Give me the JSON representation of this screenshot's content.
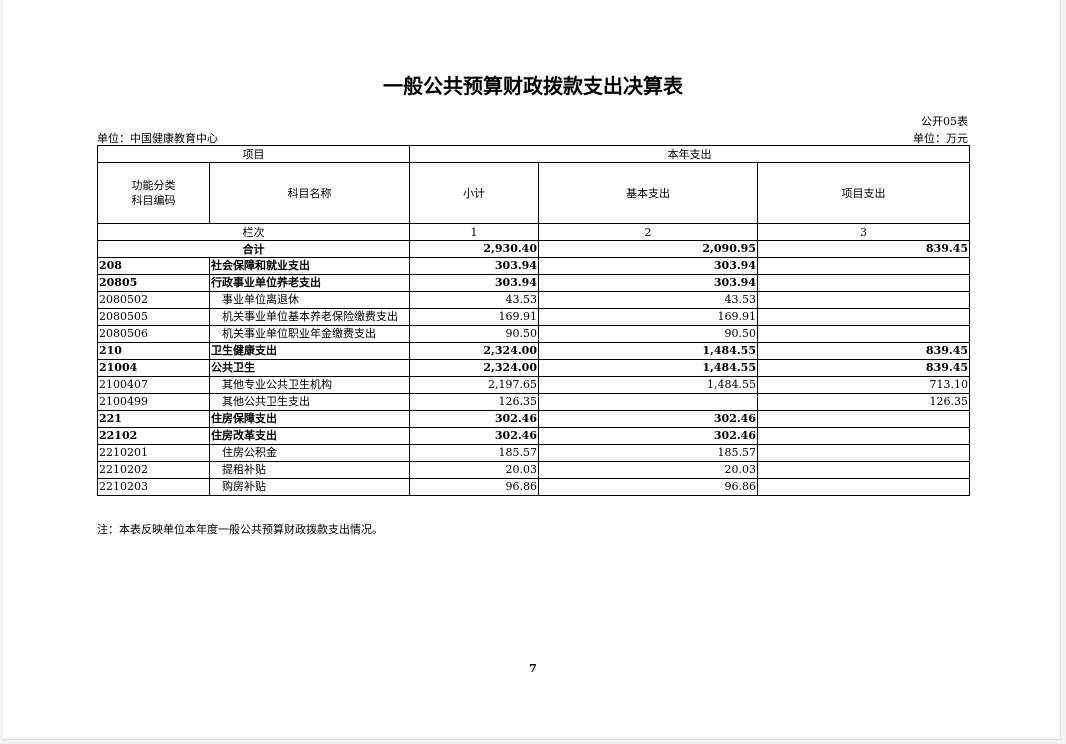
{
  "title": "一般公共预算财政拨款支出决算表",
  "table_no": "公开05表",
  "unit_org": "单位：中国健康教育中心",
  "unit_money": "单位：万元",
  "header": {
    "project": "项目",
    "current_year": "本年支出",
    "code": "功能分类\n科目编码",
    "name": "科目名称",
    "subtotal": "小计",
    "basic": "基本支出",
    "project_exp": "项目支出",
    "col_label": "栏次",
    "col1": "1",
    "col2": "2",
    "col3": "3"
  },
  "total": {
    "label": "合计",
    "subtotal": "2,930.40",
    "basic": "2,090.95",
    "project": "839.45"
  },
  "rows": [
    {
      "code": "208",
      "name": "社会保障和就业支出",
      "subtotal": "303.94",
      "basic": "303.94",
      "project": "",
      "bold": true
    },
    {
      "code": "20805",
      "name": "行政事业单位养老支出",
      "subtotal": "303.94",
      "basic": "303.94",
      "project": "",
      "bold": true
    },
    {
      "code": "2080502",
      "name": "事业单位离退休",
      "subtotal": "43.53",
      "basic": "43.53",
      "project": ""
    },
    {
      "code": "2080505",
      "name": "机关事业单位基本养老保险缴费支出",
      "subtotal": "169.91",
      "basic": "169.91",
      "project": ""
    },
    {
      "code": "2080506",
      "name": "机关事业单位职业年金缴费支出",
      "subtotal": "90.50",
      "basic": "90.50",
      "project": ""
    },
    {
      "code": "210",
      "name": "卫生健康支出",
      "subtotal": "2,324.00",
      "basic": "1,484.55",
      "project": "839.45",
      "bold": true
    },
    {
      "code": "21004",
      "name": "公共卫生",
      "subtotal": "2,324.00",
      "basic": "1,484.55",
      "project": "839.45",
      "bold": true
    },
    {
      "code": "2100407",
      "name": "其他专业公共卫生机构",
      "subtotal": "2,197.65",
      "basic": "1,484.55",
      "project": "713.10"
    },
    {
      "code": "2100499",
      "name": "其他公共卫生支出",
      "subtotal": "126.35",
      "basic": "",
      "project": "126.35"
    },
    {
      "code": "221",
      "name": "住房保障支出",
      "subtotal": "302.46",
      "basic": "302.46",
      "project": "",
      "bold": true
    },
    {
      "code": "22102",
      "name": "住房改革支出",
      "subtotal": "302.46",
      "basic": "302.46",
      "project": "",
      "bold": true
    },
    {
      "code": "2210201",
      "name": "住房公积金",
      "subtotal": "185.57",
      "basic": "185.57",
      "project": ""
    },
    {
      "code": "2210202",
      "name": "提租补贴",
      "subtotal": "20.03",
      "basic": "20.03",
      "project": ""
    },
    {
      "code": "2210203",
      "name": "购房补贴",
      "subtotal": "96.86",
      "basic": "96.86",
      "project": ""
    }
  ],
  "note": "注：本表反映单位本年度一般公共预算财政拨款支出情况。",
  "page_number": "7"
}
